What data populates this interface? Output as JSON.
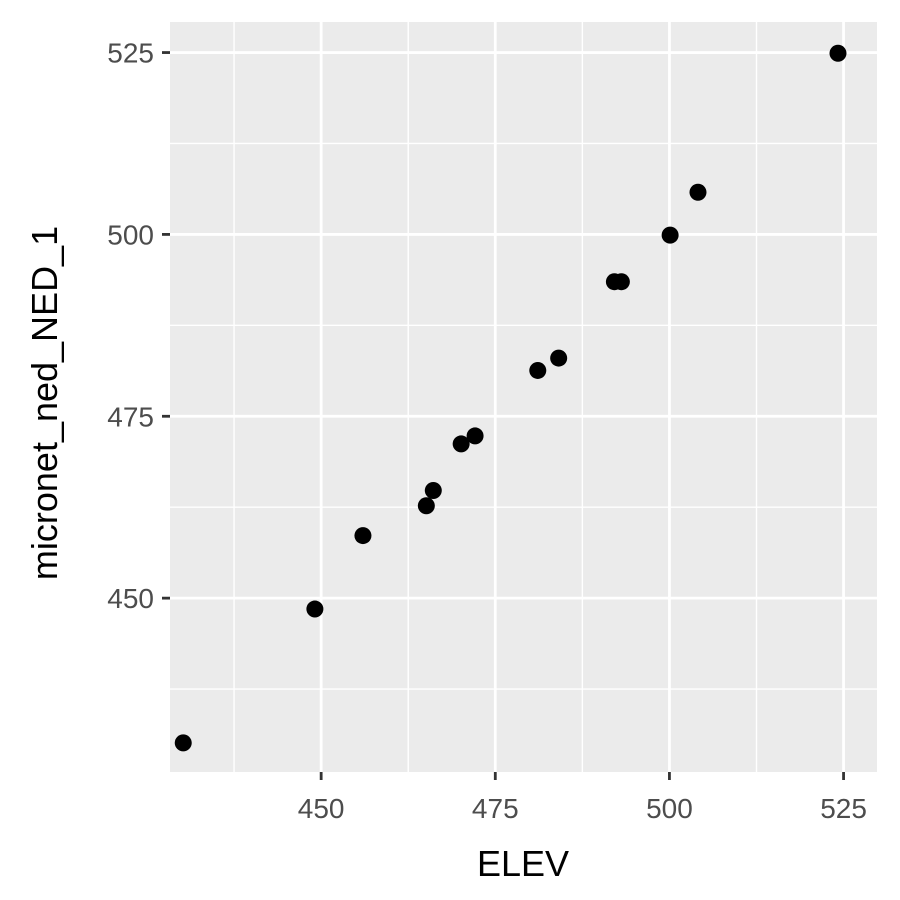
{
  "colors": {
    "panel": "#ebebeb",
    "grid": "#ffffff",
    "point": "#000000",
    "tick": "#333333",
    "tick_text": "#4d4d4d"
  },
  "chart_data": {
    "type": "scatter",
    "title": "",
    "xlabel": "ELEV",
    "ylabel": "micronet_ned_NED_1",
    "xlim": [
      428.3,
      529.8
    ],
    "ylim": [
      426.1,
      529.2
    ],
    "x_ticks": [
      450,
      475,
      500,
      525
    ],
    "y_ticks": [
      450,
      475,
      500,
      525
    ],
    "x_minor": [
      437.5,
      462.5,
      487.5,
      512.5
    ],
    "y_minor": [
      437.5,
      462.5,
      487.5,
      512.5
    ],
    "grid": true,
    "legend": "none",
    "points": [
      {
        "x": 430.2,
        "y": 430.1
      },
      {
        "x": 449.1,
        "y": 448.5
      },
      {
        "x": 456.0,
        "y": 458.6
      },
      {
        "x": 465.1,
        "y": 462.7
      },
      {
        "x": 466.1,
        "y": 464.8
      },
      {
        "x": 470.1,
        "y": 471.2
      },
      {
        "x": 472.1,
        "y": 472.3
      },
      {
        "x": 481.1,
        "y": 481.3
      },
      {
        "x": 484.1,
        "y": 483.0
      },
      {
        "x": 492.1,
        "y": 493.5
      },
      {
        "x": 493.1,
        "y": 493.5
      },
      {
        "x": 500.1,
        "y": 499.9
      },
      {
        "x": 504.1,
        "y": 505.8
      },
      {
        "x": 524.2,
        "y": 524.9
      }
    ]
  }
}
